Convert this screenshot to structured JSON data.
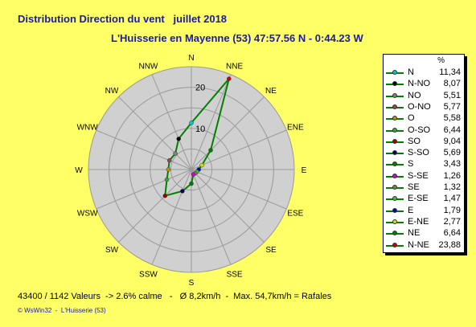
{
  "chart_data": {
    "type": "radar",
    "title": "Distribution Direction du vent   juillet 2018",
    "subtitle": "L'Huisserie en Mayenne (53) 47:57.56 N - 0:44.23 W",
    "unit": "%",
    "directions": [
      "N",
      "NNE",
      "NE",
      "ENE",
      "E",
      "ESE",
      "SE",
      "SSE",
      "S",
      "SSW",
      "SW",
      "WSW",
      "W",
      "WNW",
      "NW",
      "NNW"
    ],
    "radial_ticks": [
      10,
      20
    ],
    "rmax": 25,
    "series": [
      {
        "legend_order": [
          "N",
          "N-NO",
          "NO",
          "O-NO",
          "O",
          "O-SO",
          "SO",
          "S-SO",
          "S",
          "S-SE",
          "SE",
          "E-SE",
          "E",
          "E-NE",
          "NE",
          "N-NE"
        ],
        "values": [
          11.34,
          8.07,
          5.51,
          5.77,
          5.58,
          6.44,
          9.04,
          5.69,
          3.43,
          1.26,
          1.32,
          1.47,
          1.79,
          2.77,
          6.64,
          23.88
        ],
        "angles_deg": [
          0,
          337.5,
          315,
          292.5,
          270,
          247.5,
          225,
          202.5,
          180,
          157.5,
          135,
          112.5,
          90,
          67.5,
          45,
          22.5
        ],
        "marker_colors": [
          "#00c8c8",
          "#000000",
          "#808080",
          "#a04060",
          "#c09000",
          "#40a040",
          "#a00000",
          "#000060",
          "#008000",
          "#d000d0",
          "#808040",
          "#40c040",
          "#0000d0",
          "#d8d800",
          "#008000",
          "#d00000"
        ]
      }
    ],
    "line_color": "#008000",
    "grid": true,
    "legend_position": "right"
  },
  "footer": "43400 / 1142 Valeurs  -> 2.6% calme   -   Ø 8,2km/h  -  Max. 54,7km/h = Rafales",
  "credit": "© WsWin32  -  L'Huisserie (53)"
}
